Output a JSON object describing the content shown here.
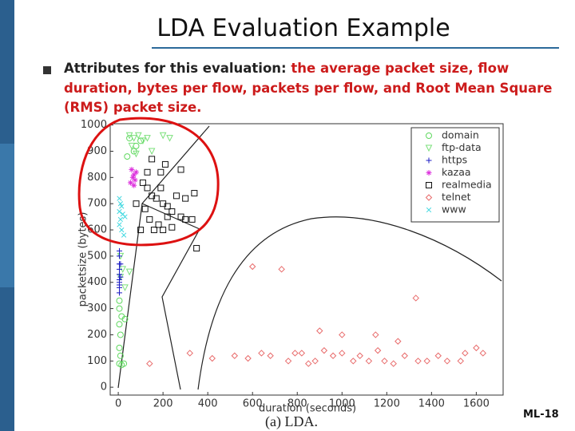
{
  "title": "LDA Evaluation Example",
  "bullet": {
    "lead": "Attributes for this evaluation: ",
    "highlight": "the average packet size, flow duration, bytes per flow, packets per flow, and Root Mean Square (RMS) packet size."
  },
  "page_number": "ML-18",
  "chart_data": {
    "type": "scatter",
    "caption": "(a) LDA.",
    "x_label": "duration (seconds)",
    "y_label": "packetsize (bytes)",
    "xlim": [
      -36,
      1720
    ],
    "ylim": [
      -30,
      1005
    ],
    "xticks": [
      0,
      200,
      400,
      600,
      800,
      1000,
      1200,
      1400,
      1600
    ],
    "yticks": [
      0,
      100,
      200,
      300,
      400,
      500,
      600,
      700,
      800,
      900,
      1000
    ],
    "series": [
      {
        "name": "domain",
        "color": "#5fd85f",
        "marker": "circle",
        "x": [
          5,
          15,
          25,
          10,
          5,
          10,
          5,
          15,
          5,
          5,
          30,
          50,
          80,
          70,
          40,
          100
        ],
        "values": [
          90,
          85,
          90,
          120,
          150,
          200,
          240,
          270,
          300,
          330,
          260,
          950,
          920,
          900,
          880,
          940
        ]
      },
      {
        "name": "ftp-data",
        "color": "#7be07b",
        "marker": "triangle-down",
        "x": [
          50,
          70,
          90,
          110,
          130,
          150,
          200,
          230,
          60,
          80,
          20,
          10,
          50,
          30,
          10
        ],
        "values": [
          960,
          950,
          960,
          940,
          950,
          900,
          960,
          950,
          920,
          890,
          450,
          420,
          440,
          380,
          500
        ]
      },
      {
        "name": "https",
        "color": "#1c1cc4",
        "marker": "plus",
        "x": [
          5,
          5,
          5,
          5,
          5,
          5,
          5,
          5,
          5,
          5,
          10,
          10
        ],
        "values": [
          520,
          500,
          470,
          450,
          430,
          410,
          400,
          390,
          380,
          360,
          420,
          470
        ]
      },
      {
        "name": "kazaa",
        "color": "#dd33dd",
        "marker": "star",
        "x": [
          60,
          70,
          65,
          75,
          80,
          55,
          70
        ],
        "values": [
          830,
          810,
          800,
          790,
          820,
          780,
          770
        ]
      },
      {
        "name": "realmedia",
        "color": "#111111",
        "marker": "square",
        "x": [
          80,
          110,
          130,
          150,
          170,
          190,
          200,
          220,
          240,
          260,
          300,
          340,
          220,
          180,
          140,
          160,
          200,
          240,
          280,
          300,
          330,
          350,
          120,
          100,
          280,
          150,
          210,
          190,
          130
        ],
        "values": [
          700,
          780,
          760,
          730,
          720,
          760,
          700,
          690,
          670,
          730,
          720,
          740,
          650,
          620,
          640,
          600,
          600,
          610,
          650,
          640,
          640,
          530,
          680,
          600,
          830,
          870,
          850,
          820,
          820
        ]
      },
      {
        "name": "telnet",
        "color": "#e86a6a",
        "marker": "diamond",
        "x": [
          600,
          730,
          1330,
          900,
          1000,
          1150,
          1250,
          1550,
          1600,
          320,
          420,
          520,
          580,
          640,
          680,
          760,
          790,
          820,
          850,
          880,
          920,
          960,
          1000,
          1050,
          1080,
          1120,
          1160,
          1190,
          1230,
          1280,
          1340,
          1380,
          1430,
          1470,
          1530,
          1630,
          140
        ],
        "values": [
          460,
          450,
          340,
          215,
          200,
          200,
          175,
          130,
          150,
          130,
          110,
          120,
          110,
          130,
          120,
          100,
          130,
          130,
          90,
          100,
          140,
          120,
          130,
          100,
          120,
          100,
          140,
          100,
          90,
          120,
          100,
          100,
          120,
          100,
          100,
          130,
          90
        ]
      },
      {
        "name": "www",
        "color": "#3fd8e0",
        "marker": "x",
        "x": [
          5,
          10,
          15,
          5,
          20,
          10,
          5,
          15,
          25,
          30
        ],
        "values": [
          720,
          700,
          690,
          670,
          660,
          640,
          620,
          600,
          580,
          650
        ]
      }
    ]
  }
}
